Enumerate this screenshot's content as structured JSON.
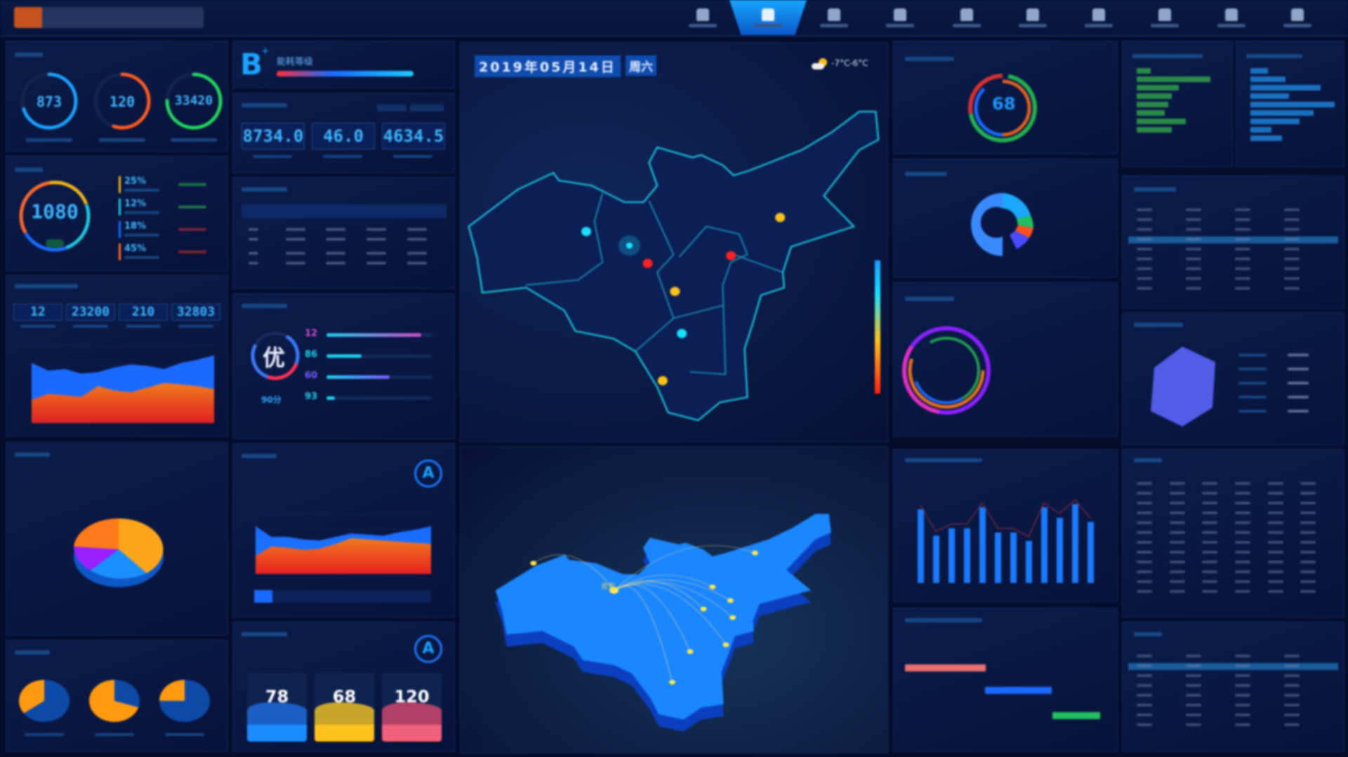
{
  "header": {
    "nav_items": [
      {
        "icon": "user-icon"
      },
      {
        "icon": "navigation-icon",
        "active": true
      },
      {
        "icon": "monitor-icon"
      },
      {
        "icon": "document-icon"
      },
      {
        "icon": "person-icon"
      },
      {
        "icon": "drop-icon"
      },
      {
        "icon": "home-icon"
      },
      {
        "icon": "chart-icon"
      },
      {
        "icon": "profile-icon"
      },
      {
        "icon": "settings-icon"
      }
    ]
  },
  "left": {
    "gauges": [
      {
        "value": "873",
        "color": "#1aa3ff",
        "pct": 0.7
      },
      {
        "value": "120",
        "color": "#ff5a1f",
        "pct": 0.55
      },
      {
        "value": "33420",
        "color": "#22d660",
        "pct": 0.75
      }
    ],
    "cost": {
      "value": "1080",
      "legend": [
        {
          "pct": "25%",
          "color": "#f0b417"
        },
        {
          "pct": "12%",
          "color": "#1ec8e0"
        },
        {
          "pct": "18%",
          "color": "#1a6aff"
        },
        {
          "pct": "45%",
          "color": "#ff6a2a"
        }
      ]
    },
    "stats": [
      "12",
      "23200",
      "210",
      "32803"
    ],
    "grade": {
      "letter": "B",
      "sup": "+",
      "label": "能耗等级"
    },
    "energy": [
      "8734.0",
      "46.0",
      "4634.5"
    ],
    "score": {
      "char": "优",
      "value": "90分",
      "bars": [
        {
          "n": "12",
          "pct": 0.9,
          "color": "#d24fd0"
        },
        {
          "n": "86",
          "pct": 0.33,
          "color": "#1ed0f0"
        },
        {
          "n": "60",
          "pct": 0.6,
          "color": "#7a5cff"
        },
        {
          "n": "93",
          "pct": 0.08,
          "color": "#1ed0f0"
        }
      ]
    },
    "devices": [
      {
        "value": "78",
        "color": "#1a8cff",
        "wave": "#1b5fc4"
      },
      {
        "value": "68",
        "color": "#ffc21a",
        "wave": "#c9a52a"
      },
      {
        "value": "120",
        "color": "#f0607a",
        "wave": "#b04068"
      }
    ],
    "badge": "A"
  },
  "center": {
    "date": "2019年05月14日",
    "weekday": "周六",
    "weather": "-7°C-6°C",
    "weather_icon": "partly-cloudy-icon",
    "hub_label": "吉安"
  },
  "right": {
    "donut_value": "68"
  },
  "chart_data": [
    {
      "type": "area",
      "series": [
        {
          "values": [
            78,
            68,
            70,
            64,
            66,
            72,
            76,
            74,
            70,
            78,
            82,
            88
          ]
        },
        {
          "values": [
            30,
            38,
            36,
            34,
            48,
            42,
            40,
            46,
            52,
            50,
            48,
            44
          ]
        }
      ]
    },
    {
      "type": "area",
      "series": [
        {
          "values": [
            80,
            62,
            62,
            58,
            56,
            62,
            68,
            66,
            64,
            70,
            74,
            80
          ]
        },
        {
          "values": [
            30,
            46,
            44,
            40,
            42,
            50,
            60,
            58,
            56,
            54,
            52,
            50
          ]
        }
      ]
    },
    {
      "type": "bar",
      "values": [
        70,
        45,
        52,
        52,
        72,
        48,
        48,
        40,
        72,
        62,
        75,
        58
      ]
    }
  ]
}
